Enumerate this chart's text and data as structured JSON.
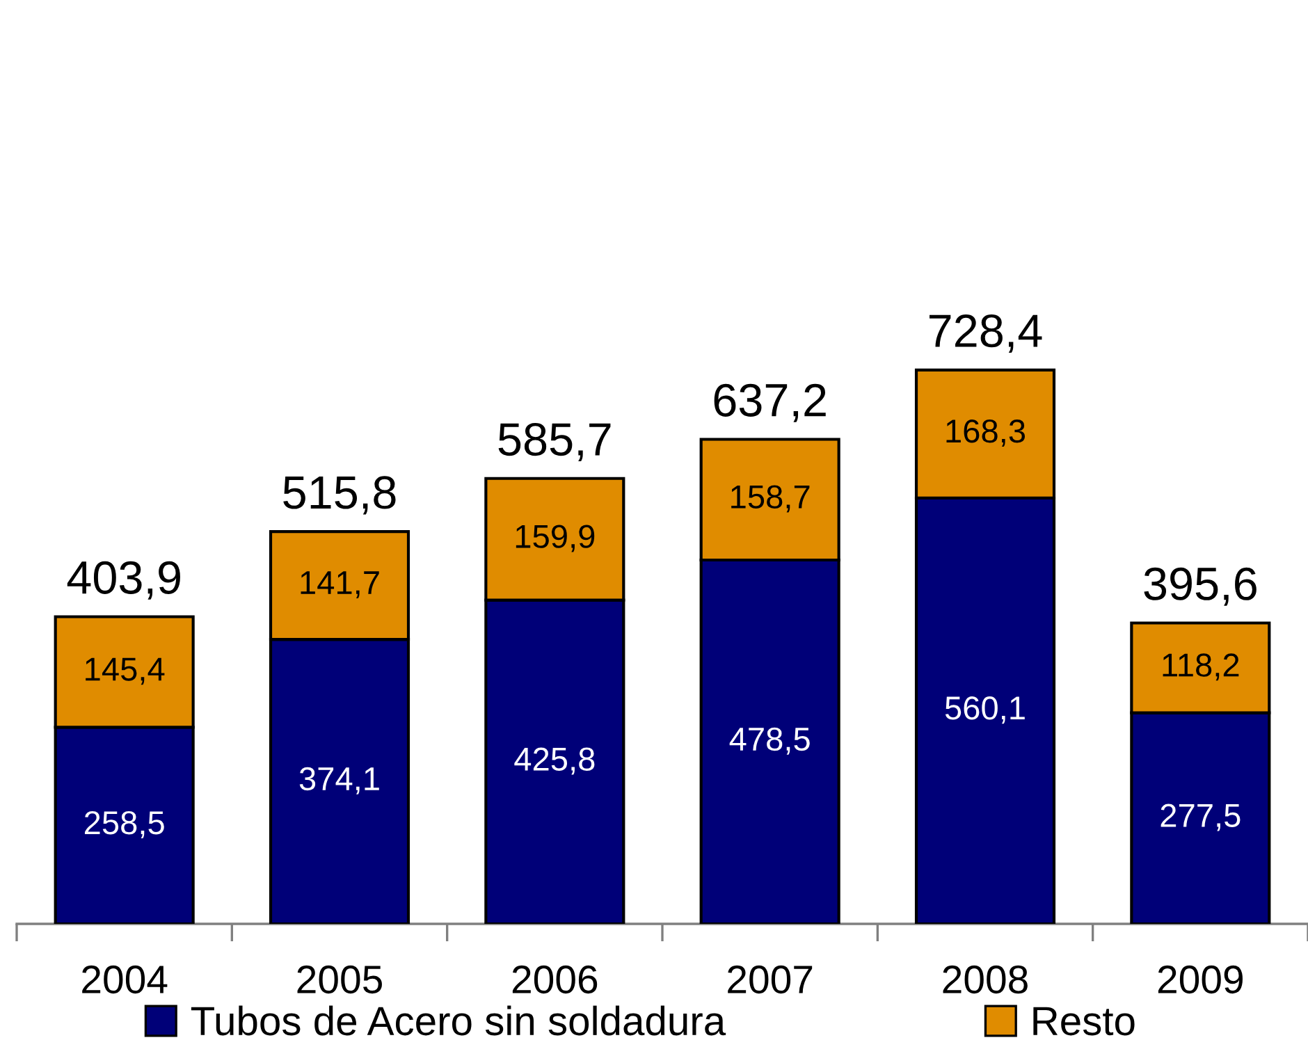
{
  "chart_data": {
    "type": "bar",
    "stacked": true,
    "categories": [
      "2004",
      "2005",
      "2006",
      "2007",
      "2008",
      "2009"
    ],
    "series": [
      {
        "name": "Tubos de Acero sin soldadura",
        "color": "#000078",
        "values": [
          258.5,
          374.1,
          425.8,
          478.5,
          560.1,
          277.5
        ],
        "value_labels": [
          "258,5",
          "374,1",
          "425,8",
          "478,5",
          "560,1",
          "277,5"
        ]
      },
      {
        "name": "Resto",
        "color": "#e08c00",
        "values": [
          145.4,
          141.7,
          159.9,
          158.7,
          168.3,
          118.2
        ],
        "value_labels": [
          "145,4",
          "141,7",
          "159,9",
          "158,7",
          "168,3",
          "118,2"
        ]
      }
    ],
    "totals": [
      "403,9",
      "515,8",
      "585,7",
      "637,2",
      "728,4",
      "395,6"
    ],
    "tick_labels": "x",
    "legend": "bottom"
  }
}
